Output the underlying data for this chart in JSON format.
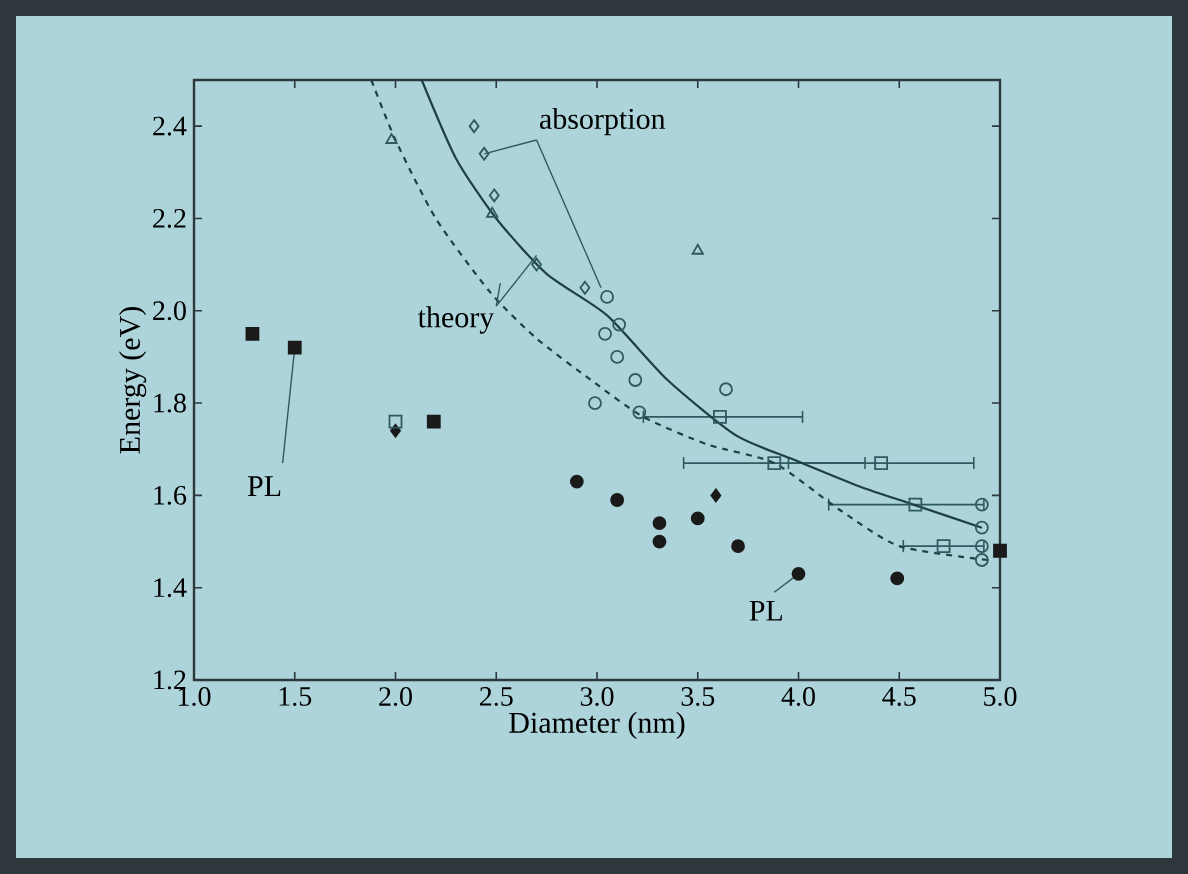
{
  "chart_data": {
    "type": "scatter",
    "xlabel": "Diameter (nm)",
    "ylabel": "Energy (eV)",
    "xlim": [
      1.0,
      5.0
    ],
    "ylim": [
      1.2,
      2.5
    ],
    "xticks": [
      {
        "value": 1.0,
        "label": "1.0"
      },
      {
        "value": 1.5,
        "label": "1.5"
      },
      {
        "value": 2.0,
        "label": "2.0"
      },
      {
        "value": 2.5,
        "label": "2.5"
      },
      {
        "value": 3.0,
        "label": "3.0"
      },
      {
        "value": 3.5,
        "label": "3.5"
      },
      {
        "value": 4.0,
        "label": "4.0"
      },
      {
        "value": 4.5,
        "label": "4.5"
      },
      {
        "value": 5.0,
        "label": "5.0"
      }
    ],
    "yticks": [
      {
        "value": 1.2,
        "label": "1.2"
      },
      {
        "value": 1.4,
        "label": "1.4"
      },
      {
        "value": 1.6,
        "label": "1.6"
      },
      {
        "value": 1.8,
        "label": "1.8"
      },
      {
        "value": 2.0,
        "label": "2.0"
      },
      {
        "value": 2.2,
        "label": "2.2"
      },
      {
        "value": 2.4,
        "label": "2.4"
      }
    ],
    "annotations": [
      {
        "text": "absorption",
        "x": 2.44,
        "y": 2.34
      },
      {
        "text": "theory",
        "x": 2.7,
        "y": 2.12
      },
      {
        "text": "PL",
        "x": 1.5,
        "y": 1.92
      },
      {
        "text": "PL",
        "x": 4.0,
        "y": 1.43
      }
    ],
    "series": [
      {
        "marker": "square",
        "color": "#1a1a1a",
        "x": [
          1.29,
          1.5,
          2.19,
          5.0
        ],
        "values": [
          1.95,
          1.92,
          1.76,
          1.48
        ]
      },
      {
        "marker": "circle",
        "color": "#1a1a1a",
        "x": [
          2.9,
          3.1,
          3.31,
          3.31,
          3.5,
          3.7,
          4.0,
          4.49
        ],
        "values": [
          1.63,
          1.59,
          1.54,
          1.5,
          1.55,
          1.49,
          1.43,
          1.42
        ]
      },
      {
        "marker": "diamond",
        "color": "#1a1a1a",
        "x": [
          2.0,
          3.59
        ],
        "values": [
          1.74,
          1.6
        ]
      },
      {
        "marker": "square",
        "color": "#2f5a60",
        "x": [
          2.0,
          3.61,
          3.88,
          4.41,
          4.58,
          4.72
        ],
        "values": [
          1.76,
          1.77,
          1.67,
          1.67,
          1.58,
          1.49
        ],
        "xerrors": [
          null,
          [
            3.23,
            4.02
          ],
          [
            3.43,
            4.33
          ],
          [
            3.95,
            4.87
          ],
          [
            4.15,
            4.92
          ],
          [
            4.52,
            4.92
          ]
        ]
      },
      {
        "marker": "circle",
        "color": "#2f5a60",
        "x": [
          3.05,
          3.11,
          3.04,
          3.1,
          3.19,
          3.64,
          2.99,
          3.21,
          4.91,
          4.91,
          4.91,
          4.91
        ],
        "values": [
          2.03,
          1.97,
          1.95,
          1.9,
          1.85,
          1.83,
          1.8,
          1.78,
          1.58,
          1.53,
          1.49,
          1.46
        ]
      },
      {
        "marker": "diamond",
        "color": "#2f5a60",
        "x": [
          2.39,
          2.44,
          2.49,
          2.7,
          2.94
        ],
        "values": [
          2.4,
          2.34,
          2.25,
          2.1,
          2.05
        ]
      },
      {
        "marker": "triangle",
        "color": "#2f5a60",
        "x": [
          1.98,
          2.48,
          3.5
        ],
        "values": [
          2.37,
          2.21,
          2.13
        ]
      },
      {
        "type": "line",
        "line_style": "solid",
        "marker": "none",
        "color": "#1f3f44",
        "x": [
          2.13,
          2.3,
          2.5,
          2.75,
          3.05,
          3.35,
          3.69,
          3.99,
          4.3,
          4.57,
          4.91
        ],
        "values": [
          2.5,
          2.33,
          2.2,
          2.08,
          1.99,
          1.85,
          1.73,
          1.675,
          1.62,
          1.58,
          1.53
        ]
      },
      {
        "type": "line",
        "line_style": "dashed",
        "marker": "none",
        "color": "#1f3f44",
        "x": [
          1.88,
          2.0,
          2.2,
          2.47,
          2.7,
          2.97,
          3.23,
          3.55,
          3.88,
          4.2,
          4.5,
          4.94
        ],
        "values": [
          2.5,
          2.37,
          2.2,
          2.04,
          1.94,
          1.85,
          1.77,
          1.71,
          1.67,
          1.57,
          1.49,
          1.46
        ]
      }
    ]
  }
}
